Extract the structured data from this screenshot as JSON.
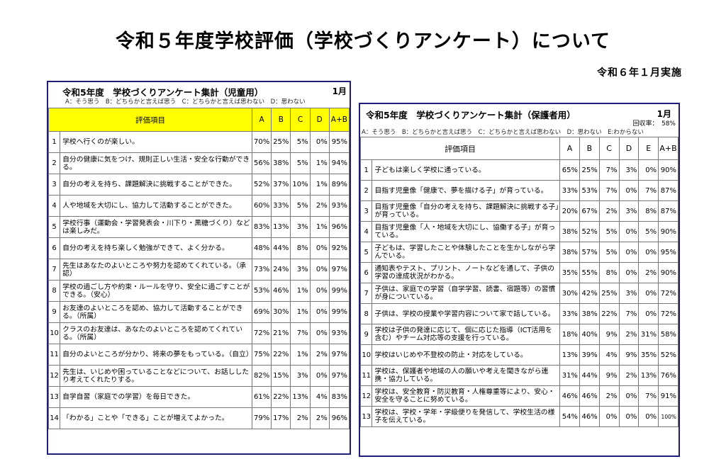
{
  "page": {
    "title": "令和５年度学校評価（学校づくりアンケート）について",
    "date": "令和６年１月実施"
  },
  "students": {
    "title": "令和5年度　学校づくりアンケート集計（児童用）",
    "month": "1月",
    "legend": "A：そう思う　B：どちらかと言えば思う　C：どちらかと言えば思わない　D：思わない",
    "headers": [
      "評価項目",
      "A",
      "B",
      "C",
      "D",
      "A+B"
    ],
    "rows": [
      {
        "no": "1",
        "item": "学校へ行くのが楽しい。",
        "a": "70%",
        "b": "25%",
        "c": "5%",
        "d": "0%",
        "ab": "95%"
      },
      {
        "no": "2",
        "item": "自分の健康に気をつけ、規則正しい生活・安全な行動ができる。",
        "a": "56%",
        "b": "38%",
        "c": "5%",
        "d": "1%",
        "ab": "94%"
      },
      {
        "no": "3",
        "item": "自分の考えを持ち、課題解決に挑戦することができた。",
        "a": "52%",
        "b": "37%",
        "c": "10%",
        "d": "1%",
        "ab": "89%"
      },
      {
        "no": "4",
        "item": "人や地域を大切にし、協力して活動することができた。",
        "a": "60%",
        "b": "33%",
        "c": "5%",
        "d": "2%",
        "ab": "93%"
      },
      {
        "no": "5",
        "item": "学校行事（運動会・学習発表会・川下り・黒糖づくり）などは楽しみだ。",
        "a": "83%",
        "b": "13%",
        "c": "3%",
        "d": "1%",
        "ab": "96%"
      },
      {
        "no": "6",
        "item": "自分の考えを持ち楽しく勉強ができて、よく分かる。",
        "a": "48%",
        "b": "44%",
        "c": "8%",
        "d": "0%",
        "ab": "92%"
      },
      {
        "no": "7",
        "item": "先生はあなたのよいところや努力を認めてくれている。（承認）",
        "a": "73%",
        "b": "24%",
        "c": "3%",
        "d": "0%",
        "ab": "97%"
      },
      {
        "no": "8",
        "item": "学校の過ごし方や約束・ルールを守り、安全に過ごすことができる。（安心）",
        "a": "53%",
        "b": "46%",
        "c": "1%",
        "d": "0%",
        "ab": "99%"
      },
      {
        "no": "9",
        "item": "お友達のよいところを認め、協力して活動することができる。（所属）",
        "a": "69%",
        "b": "30%",
        "c": "1%",
        "d": "0%",
        "ab": "99%"
      },
      {
        "no": "10",
        "item": "クラスのお友達は、あなたのよいところを認めてくれている。（所属）",
        "a": "72%",
        "b": "21%",
        "c": "7%",
        "d": "0%",
        "ab": "93%"
      },
      {
        "no": "11",
        "item": "自分のよいところが分かり、将来の夢をもっている。（自立）",
        "a": "75%",
        "b": "22%",
        "c": "1%",
        "d": "2%",
        "ab": "97%"
      },
      {
        "no": "12",
        "item": "先生は、いじめや困っていることなどについて、お話ししたり考えてくれたりする。",
        "a": "82%",
        "b": "15%",
        "c": "3%",
        "d": "0%",
        "ab": "97%"
      },
      {
        "no": "13",
        "item": "自学自習（家庭での学習）を毎日できた。",
        "a": "61%",
        "b": "22%",
        "c": "13%",
        "d": "4%",
        "ab": "83%"
      },
      {
        "no": "14",
        "item": "「わかる」ことや「できる」ことが増えてよかった。",
        "a": "79%",
        "b": "17%",
        "c": "2%",
        "d": "2%",
        "ab": "96%"
      }
    ]
  },
  "parents": {
    "title": "令和5年度　学校づくりアンケート集計（保護者用）",
    "month": "1月",
    "response_rate": "回収率：　58%",
    "legend": "A：そう思う　B：どちらかと言えば思う　C：どちらかと言えば思わない　D：思わない　E:わからない",
    "headers": [
      "評価項目",
      "A",
      "B",
      "C",
      "D",
      "E",
      "A+B"
    ],
    "rows": [
      {
        "no": "1",
        "item": "子どもは楽しく学校に通っている。",
        "a": "65%",
        "b": "25%",
        "c": "7%",
        "d": "3%",
        "e": "0%",
        "ab": "90%"
      },
      {
        "no": "2",
        "item": "目指す児童像「健康で、夢を描ける子」が育っている。",
        "a": "33%",
        "b": "53%",
        "c": "7%",
        "d": "0%",
        "e": "7%",
        "ab": "87%"
      },
      {
        "no": "3",
        "item": "目指す児童像「自分の考えを持ち、課題解決に挑戦する子」が育っている。",
        "a": "20%",
        "b": "67%",
        "c": "2%",
        "d": "3%",
        "e": "8%",
        "ab": "87%"
      },
      {
        "no": "4",
        "item": "目指す児童像「人・地域を大切にし、協働する子」が育っている。",
        "a": "38%",
        "b": "52%",
        "c": "5%",
        "d": "0%",
        "e": "5%",
        "ab": "90%"
      },
      {
        "no": "5",
        "item": "子どもは、学習したことや体験したことを生かしながら学んでいる。",
        "a": "38%",
        "b": "57%",
        "c": "5%",
        "d": "0%",
        "e": "0%",
        "ab": "95%"
      },
      {
        "no": "6",
        "item": "通知表やテスト、プリント、ノートなどを通して、子供の学習の達成状況がわかる。",
        "a": "35%",
        "b": "55%",
        "c": "8%",
        "d": "0%",
        "e": "2%",
        "ab": "90%"
      },
      {
        "no": "7",
        "item": "子供は、家庭での学習（自学学習、読書、宿題等）の習慣が身についている。",
        "a": "30%",
        "b": "42%",
        "c": "25%",
        "d": "3%",
        "e": "0%",
        "ab": "72%"
      },
      {
        "no": "8",
        "item": "子供は、学校の授業や学習内容について家で話している。",
        "a": "33%",
        "b": "38%",
        "c": "22%",
        "d": "7%",
        "e": "0%",
        "ab": "72%"
      },
      {
        "no": "9",
        "item": "学校は子供の発達に応じて、個に応じた指導（ICT活用を含む）やチーム対応等の支援を行っている。",
        "a": "18%",
        "b": "40%",
        "c": "9%",
        "d": "2%",
        "e": "31%",
        "ab": "58%"
      },
      {
        "no": "10",
        "item": "学校はいじめや不登校の防止・対応をしている。",
        "a": "13%",
        "b": "39%",
        "c": "4%",
        "d": "9%",
        "e": "35%",
        "ab": "52%"
      },
      {
        "no": "11",
        "item": "学校は、保護者や地域の人の願いや考えを聞きながら連携・協力している。",
        "a": "31%",
        "b": "44%",
        "c": "9%",
        "d": "2%",
        "e": "13%",
        "ab": "76%"
      },
      {
        "no": "12",
        "item": "学校は、安全教育・防災教育・人権尊重等により、安心・安全を守ることに努めている。",
        "a": "46%",
        "b": "46%",
        "c": "2%",
        "d": "0%",
        "e": "7%",
        "ab": "91%"
      },
      {
        "no": "13",
        "item": "学校は、学校・学年・学級便りを発信して、学校生活の様子を伝えている。",
        "a": "54%",
        "b": "46%",
        "c": "0%",
        "d": "0%",
        "e": "0%",
        "ab": "100%"
      }
    ]
  }
}
